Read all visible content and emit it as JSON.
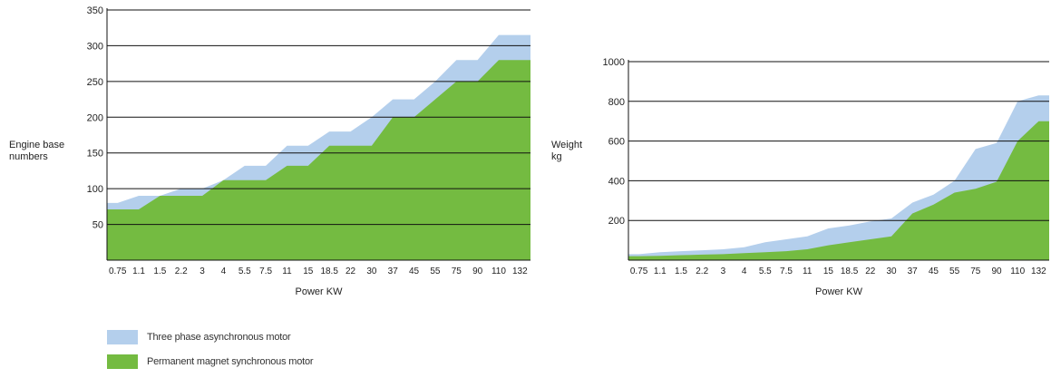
{
  "colors": {
    "async": "#b4cfec",
    "pm": "#74bb41",
    "grid": "#111111",
    "text": "#222222"
  },
  "legend": [
    {
      "label": "Three phase asynchronous motor",
      "color": "#b4cfec"
    },
    {
      "label": "Permanent magnet synchronous motor",
      "color": "#74bb41"
    }
  ],
  "chart_data": [
    {
      "type": "area",
      "xlabel": "Power KW",
      "ylabel": "Engine base numbers",
      "ylim": [
        0,
        350
      ],
      "yticks": [
        50,
        100,
        150,
        200,
        250,
        300,
        350
      ],
      "categories": [
        "0.75",
        "1.1",
        "1.5",
        "2.2",
        "3",
        "4",
        "5.5",
        "7.5",
        "11",
        "15",
        "18.5",
        "22",
        "30",
        "37",
        "45",
        "55",
        "75",
        "90",
        "110",
        "132"
      ],
      "grid": "horizontal",
      "series": [
        {
          "name": "Three phase asynchronous motor",
          "color": "#b4cfec",
          "values": [
            80,
            90,
            90,
            100,
            100,
            112,
            132,
            132,
            160,
            160,
            180,
            180,
            200,
            225,
            225,
            250,
            280,
            280,
            315,
            315
          ]
        },
        {
          "name": "Permanent magnet synchronous motor",
          "color": "#74bb41",
          "values": [
            71,
            71,
            90,
            90,
            90,
            112,
            112,
            112,
            132,
            132,
            160,
            160,
            160,
            200,
            200,
            225,
            250,
            250,
            280,
            280
          ]
        }
      ]
    },
    {
      "type": "area",
      "xlabel": "Power KW",
      "ylabel": "Weight kg",
      "ylim": [
        0,
        1000
      ],
      "yticks": [
        200,
        400,
        600,
        800,
        1000
      ],
      "categories": [
        "0.75",
        "1.1",
        "1.5",
        "2.2",
        "3",
        "4",
        "5.5",
        "7.5",
        "11",
        "15",
        "18.5",
        "22",
        "30",
        "37",
        "45",
        "55",
        "75",
        "90",
        "110",
        "132"
      ],
      "grid": "horizontal",
      "series": [
        {
          "name": "Three phase asynchronous motor",
          "color": "#b4cfec",
          "values": [
            30,
            40,
            45,
            50,
            55,
            65,
            90,
            105,
            120,
            160,
            175,
            195,
            210,
            290,
            330,
            400,
            560,
            590,
            800,
            830
          ]
        },
        {
          "name": "Permanent magnet synchronous motor",
          "color": "#74bb41",
          "values": [
            20,
            22,
            25,
            28,
            30,
            35,
            40,
            45,
            55,
            75,
            90,
            105,
            120,
            235,
            280,
            340,
            360,
            395,
            600,
            700
          ]
        }
      ]
    }
  ]
}
